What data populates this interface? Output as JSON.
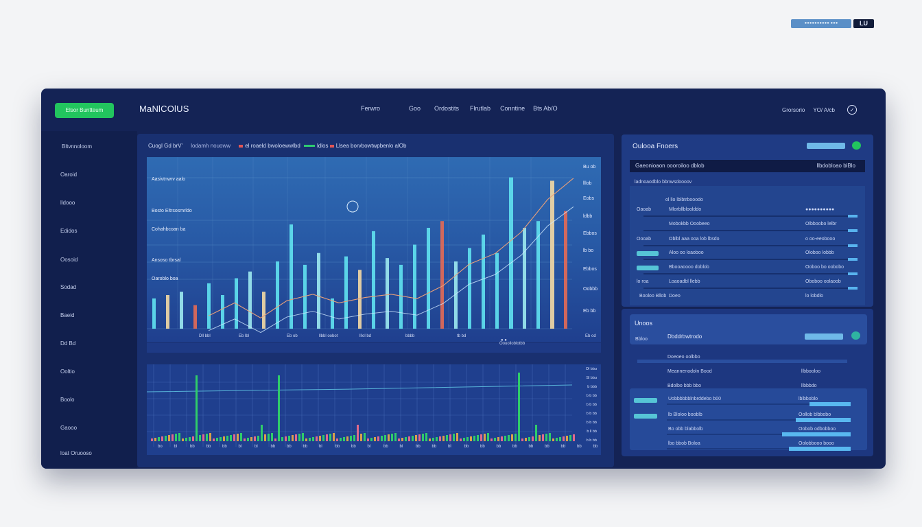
{
  "window_controls": {
    "label": "●●●●●●●●●● ●●●",
    "badge": "LU"
  },
  "topbar": {
    "cta_label": "Elsor Buntteum",
    "brand": "MaNlCOlUS",
    "nav": [
      "Ferwro",
      "Goo",
      "Ordostits",
      "Flrutlab",
      "Conntine",
      "Bts Ab/O"
    ],
    "right": [
      "Grorsorio",
      "YO/ A/cb"
    ],
    "user_icon": "user-circle-icon"
  },
  "sidebar": {
    "items": [
      "Bltvnnoloom",
      "Oaroid",
      "lldooo",
      "Edidos",
      "Oosoid",
      "Sodad",
      "Baeid",
      "Dd Bd",
      "Ooltio",
      "Boolo",
      "Gaooo",
      "loat Oruooso"
    ]
  },
  "main": {
    "header": {
      "title": "Cuogl Gd brV'",
      "meta1": "lodamh nouoww",
      "meta2": "el roaeld bwoloewwlbd",
      "meta3": "ldlos",
      "meta4": "Llsea borvbowtwpbenlo alOb"
    },
    "chart_labels": [
      "Aasivtnwrv aalo",
      "Bosto Eltrsosmrldo",
      "Cohahbcoan ba",
      "Ansoso tbrsal",
      "Oaroblo boa"
    ],
    "right_axis": [
      "Bu ob",
      "lllob",
      "Eobs",
      "ldbb",
      "Ebbos",
      "lb bo",
      "Ebbos",
      "Oobbb",
      "Eb bb"
    ],
    "x_axis": [
      "Dll bbl",
      "Eb lbl",
      "Eb ob",
      "llbbl oobot",
      "lllol bd",
      "bbbb",
      "tb bd",
      "Oouoiloblotbb",
      "Eb od"
    ],
    "x_sub": "● ●",
    "chart2_axis": [
      "Ol bbu",
      "Sl bbu",
      "b bbb",
      "b b bb",
      "b b bb",
      "b b bb",
      "b b bb",
      "b ll bb",
      "b b bb"
    ],
    "x_axis2": [
      "bo",
      "bl",
      "bb",
      "bb",
      "bb",
      "bl",
      "bl",
      "bb",
      "bb",
      "bb",
      "bl",
      "bb",
      "bb",
      "bl",
      "bb",
      "bl",
      "bb",
      "bb",
      "bl",
      "bb",
      "bb",
      "bb",
      "bb",
      "bb",
      "bb",
      "bb",
      "bb",
      "bb"
    ]
  },
  "right_panel": {
    "title": "Oulooa Fnoers",
    "subhead_left": "Gaeonioaon oooroiloo dblob",
    "subhead_right": "llbdobloao blBlo",
    "section_label": "ladnoaodblo bbnwsdoooov",
    "rows": [
      {
        "c1": "",
        "c2": "ol llo lblbtrbooodo",
        "c3": ""
      },
      {
        "c1": "Oaoab",
        "c2": "Mlorbllbloolddo",
        "c3": "●●●●●●●●●●"
      },
      {
        "c1": "",
        "c2": "Mobokbb Ooobeeo",
        "c3": "Olbboobo lelbr"
      },
      {
        "c1": "Oooab",
        "c2": "Oblbl aaa ooa lob lbsdo",
        "c3": "o oo-eeobooo"
      },
      {
        "c1": "",
        "c2": "Aloo oo loaoboo",
        "c3": "Oloboo lobbb"
      },
      {
        "c1": "",
        "c2": "Bbooaoooo doblob",
        "c3": "Ooboo bo oobobo"
      },
      {
        "c1": "lo roa",
        "c2": "Loaoadbl llebb",
        "c3": "Oboboo oolaoob"
      },
      {
        "c1": "Booloo Bllob",
        "c2": "Doeo",
        "c3": "lo lobdlo"
      }
    ]
  },
  "bottom_panel": {
    "title": "Unoos",
    "row_left": "Bbloo",
    "row_right": "Dbddrbwtrodo",
    "rows": [
      {
        "a": "Doeoeo oolbbo",
        "b": ""
      },
      {
        "a": "Meannenodoln Bood",
        "b": "llbbooloo"
      },
      {
        "a": "Bdolbo bbb bbo",
        "b": "llbbbdo"
      }
    ],
    "subrows": [
      {
        "a": "Uobbbbbblnbrddebo b00",
        "b": "lblbboblo"
      },
      {
        "a": "lb Bloloo booblb",
        "b": "Oollob blbbobo"
      },
      {
        "a": "Bo obb blabbolb",
        "b": "Oobob odbobboo"
      },
      {
        "a": "lbo bbob Boloa",
        "b": "Oolobbooo booo"
      }
    ]
  },
  "colors": {
    "accent_green": "#22c55e",
    "accent_cyan": "#56c5d6",
    "bg_dark": "#142355"
  },
  "chart_data": {
    "type": "bar",
    "series": [
      {
        "values": [
          18,
          20,
          22,
          14,
          27,
          20,
          30,
          34,
          22,
          40,
          62,
          38,
          45,
          18,
          43,
          35,
          58,
          42,
          38,
          50,
          60,
          64,
          40,
          48,
          56,
          45,
          90,
          60,
          64,
          88,
          70
        ]
      },
      {
        "values": [
          420,
          540,
          400,
          560,
          620,
          540,
          590,
          620,
          580,
          700,
          900,
          1000,
          1200,
          1500,
          1700
        ]
      }
    ]
  }
}
